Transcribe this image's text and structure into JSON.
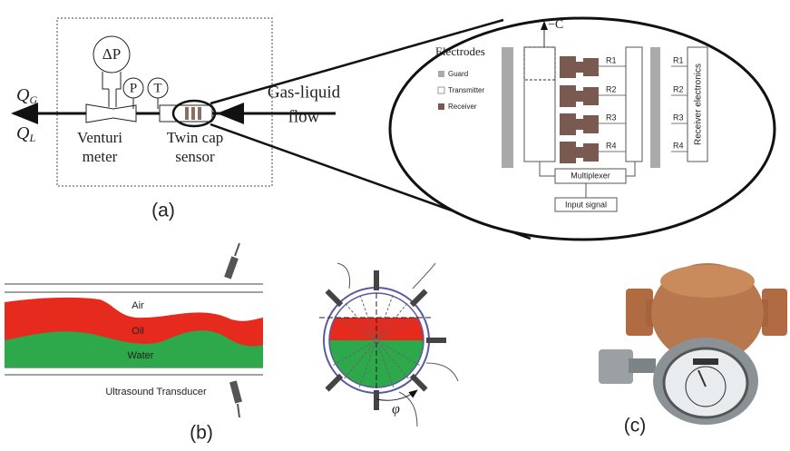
{
  "panel_a": {
    "delta_p": "ΔP",
    "p": "P",
    "t": "T",
    "q_g": {
      "symbol": "Q",
      "sub": "G"
    },
    "q_l": {
      "symbol": "Q",
      "sub": "L"
    },
    "venturi": [
      "Venturi",
      "meter"
    ],
    "sensor": [
      "Twin cap",
      "sensor"
    ],
    "flow": [
      "Gas-liquid",
      "flow"
    ],
    "label": "(a)",
    "detail": {
      "minus_c": "−C",
      "legend_title": "Electrodes",
      "legend": [
        "Guard",
        "Transmitter",
        "Receiver"
      ],
      "receivers_left": [
        "R1",
        "R2",
        "R3",
        "R4"
      ],
      "receivers_right": [
        "R1",
        "R2",
        "R3",
        "R4"
      ],
      "electronics": "Receiver electronics",
      "multiplexer": "Multiplexer",
      "input": "Input signal"
    }
  },
  "panel_b": {
    "layers": [
      "Air",
      "Oil",
      "Water"
    ],
    "transducer": "Ultrasound Transducer",
    "angle": "φ",
    "label": "(b)"
  },
  "panel_c": {
    "label": "(c)"
  }
}
